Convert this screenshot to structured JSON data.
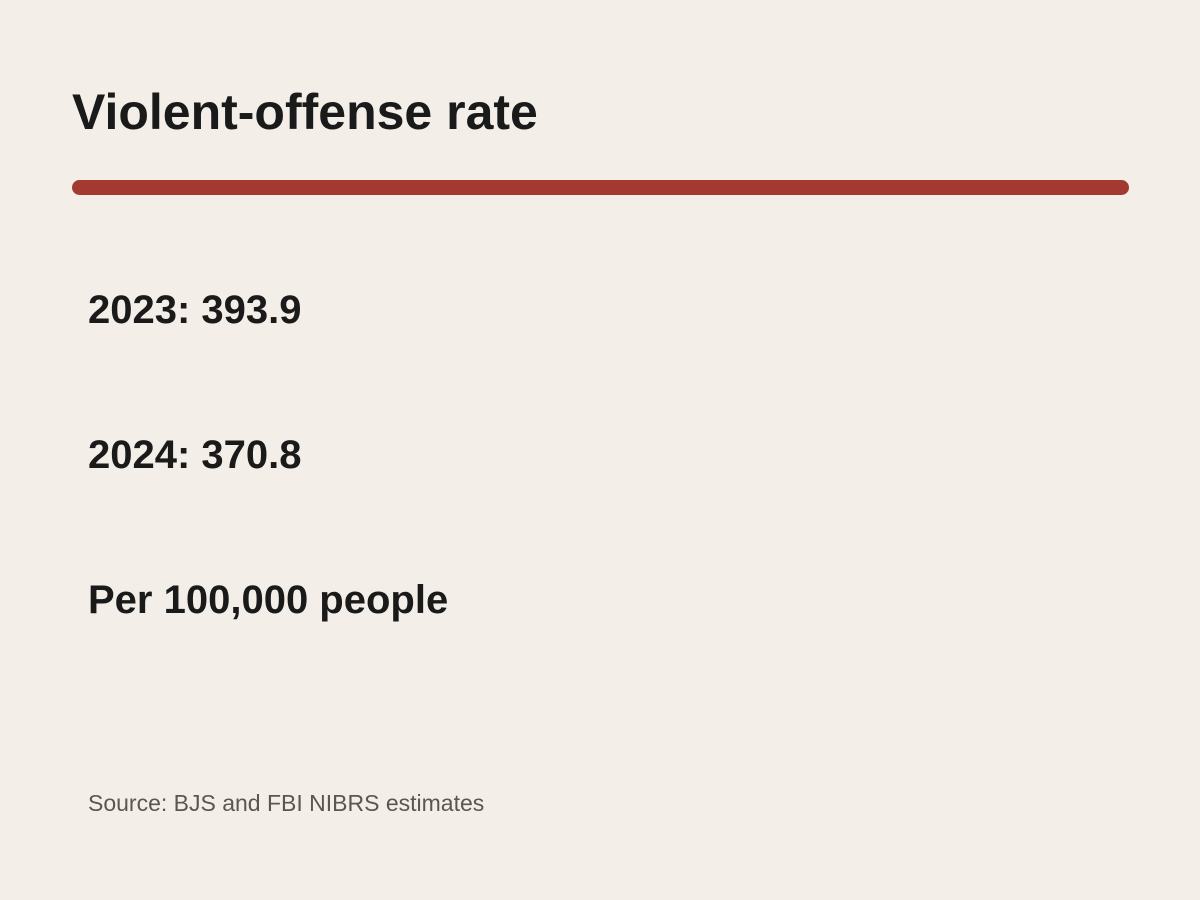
{
  "card": {
    "title": "Violent-offense rate",
    "stats": [
      {
        "label": "2023: 393.9",
        "year": 2023,
        "value": 393.9
      },
      {
        "label": "2024: 370.8",
        "year": 2024,
        "value": 370.8
      }
    ],
    "unit": "Per 100,000 people",
    "source": "Source: BJS and FBI NIBRS estimates"
  },
  "colors": {
    "background": "#f3efe8",
    "accent_rule": "#a33a2f",
    "text": "#1a1a1a",
    "source_text": "#5a5650"
  }
}
